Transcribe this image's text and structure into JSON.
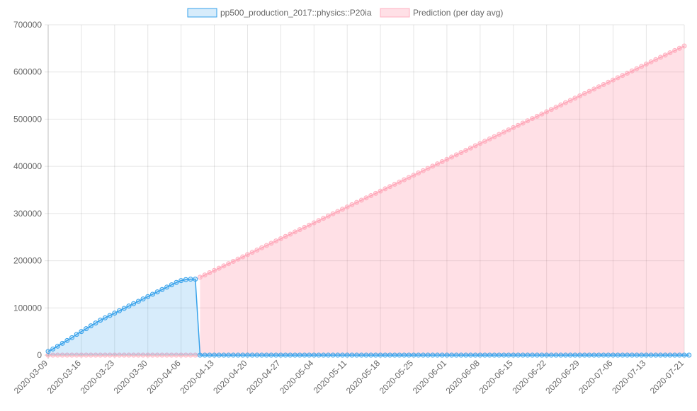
{
  "chart_data": {
    "type": "area",
    "x_start": "2020-03-09",
    "x_end": "2020-07-21",
    "x_tick_labels": [
      "2020-03-09",
      "2020-03-16",
      "2020-03-23",
      "2020-03-30",
      "2020-04-06",
      "2020-04-13",
      "2020-04-20",
      "2020-04-27",
      "2020-05-04",
      "2020-05-11",
      "2020-05-18",
      "2020-05-25",
      "2020-06-01",
      "2020-06-08",
      "2020-06-15",
      "2020-06-22",
      "2020-06-29",
      "2020-07-06",
      "2020-07-13",
      "2020-07-21"
    ],
    "y_tick_labels": [
      "0",
      "100000",
      "200000",
      "300000",
      "400000",
      "500000",
      "600000",
      "700000"
    ],
    "ylim": [
      0,
      700000
    ],
    "grid": true,
    "legend": "top-center",
    "series": [
      {
        "name": "pp500_production_2017::physics::P20ia",
        "color": "#36a2eb",
        "fill": "rgba(54,162,235,0.2)",
        "x_start": "2020-03-09",
        "x_end": "2020-07-21",
        "values": [
          8000,
          13000,
          19000,
          25000,
          31000,
          37000,
          44000,
          50000,
          56000,
          62000,
          68000,
          74000,
          79000,
          84000,
          89000,
          94000,
          99000,
          104000,
          109000,
          114000,
          119000,
          124000,
          129000,
          134000,
          139000,
          144000,
          149000,
          154000,
          158000,
          160000,
          161000,
          161000,
          0,
          0,
          0,
          0,
          0,
          0,
          0,
          0,
          0,
          0,
          0,
          0,
          0,
          0,
          0,
          0,
          0,
          0,
          0,
          0,
          0,
          0,
          0,
          0,
          0,
          0,
          0,
          0,
          0,
          0,
          0,
          0,
          0,
          0,
          0,
          0,
          0,
          0,
          0,
          0,
          0,
          0,
          0,
          0,
          0,
          0,
          0,
          0,
          0,
          0,
          0,
          0,
          0,
          0,
          0,
          0,
          0,
          0,
          0,
          0,
          0,
          0,
          0,
          0,
          0,
          0,
          0,
          0,
          0,
          0,
          0,
          0,
          0,
          0,
          0,
          0,
          0,
          0,
          0,
          0,
          0,
          0,
          0,
          0,
          0,
          0,
          0,
          0,
          0,
          0,
          0,
          0,
          0,
          0,
          0,
          0,
          0,
          0,
          0,
          0,
          0,
          0,
          0,
          0
        ]
      },
      {
        "name": "Prediction (per day avg)",
        "color": "#ffb1c1",
        "fill": "rgba(255,99,132,0.2)",
        "x_start": "2020-04-10",
        "x_end": "2020-07-21",
        "start_value": 165000,
        "end_value": 655000,
        "baseline_start": "2020-03-09",
        "baseline_end": "2020-04-09",
        "baseline_value": 0
      }
    ]
  }
}
